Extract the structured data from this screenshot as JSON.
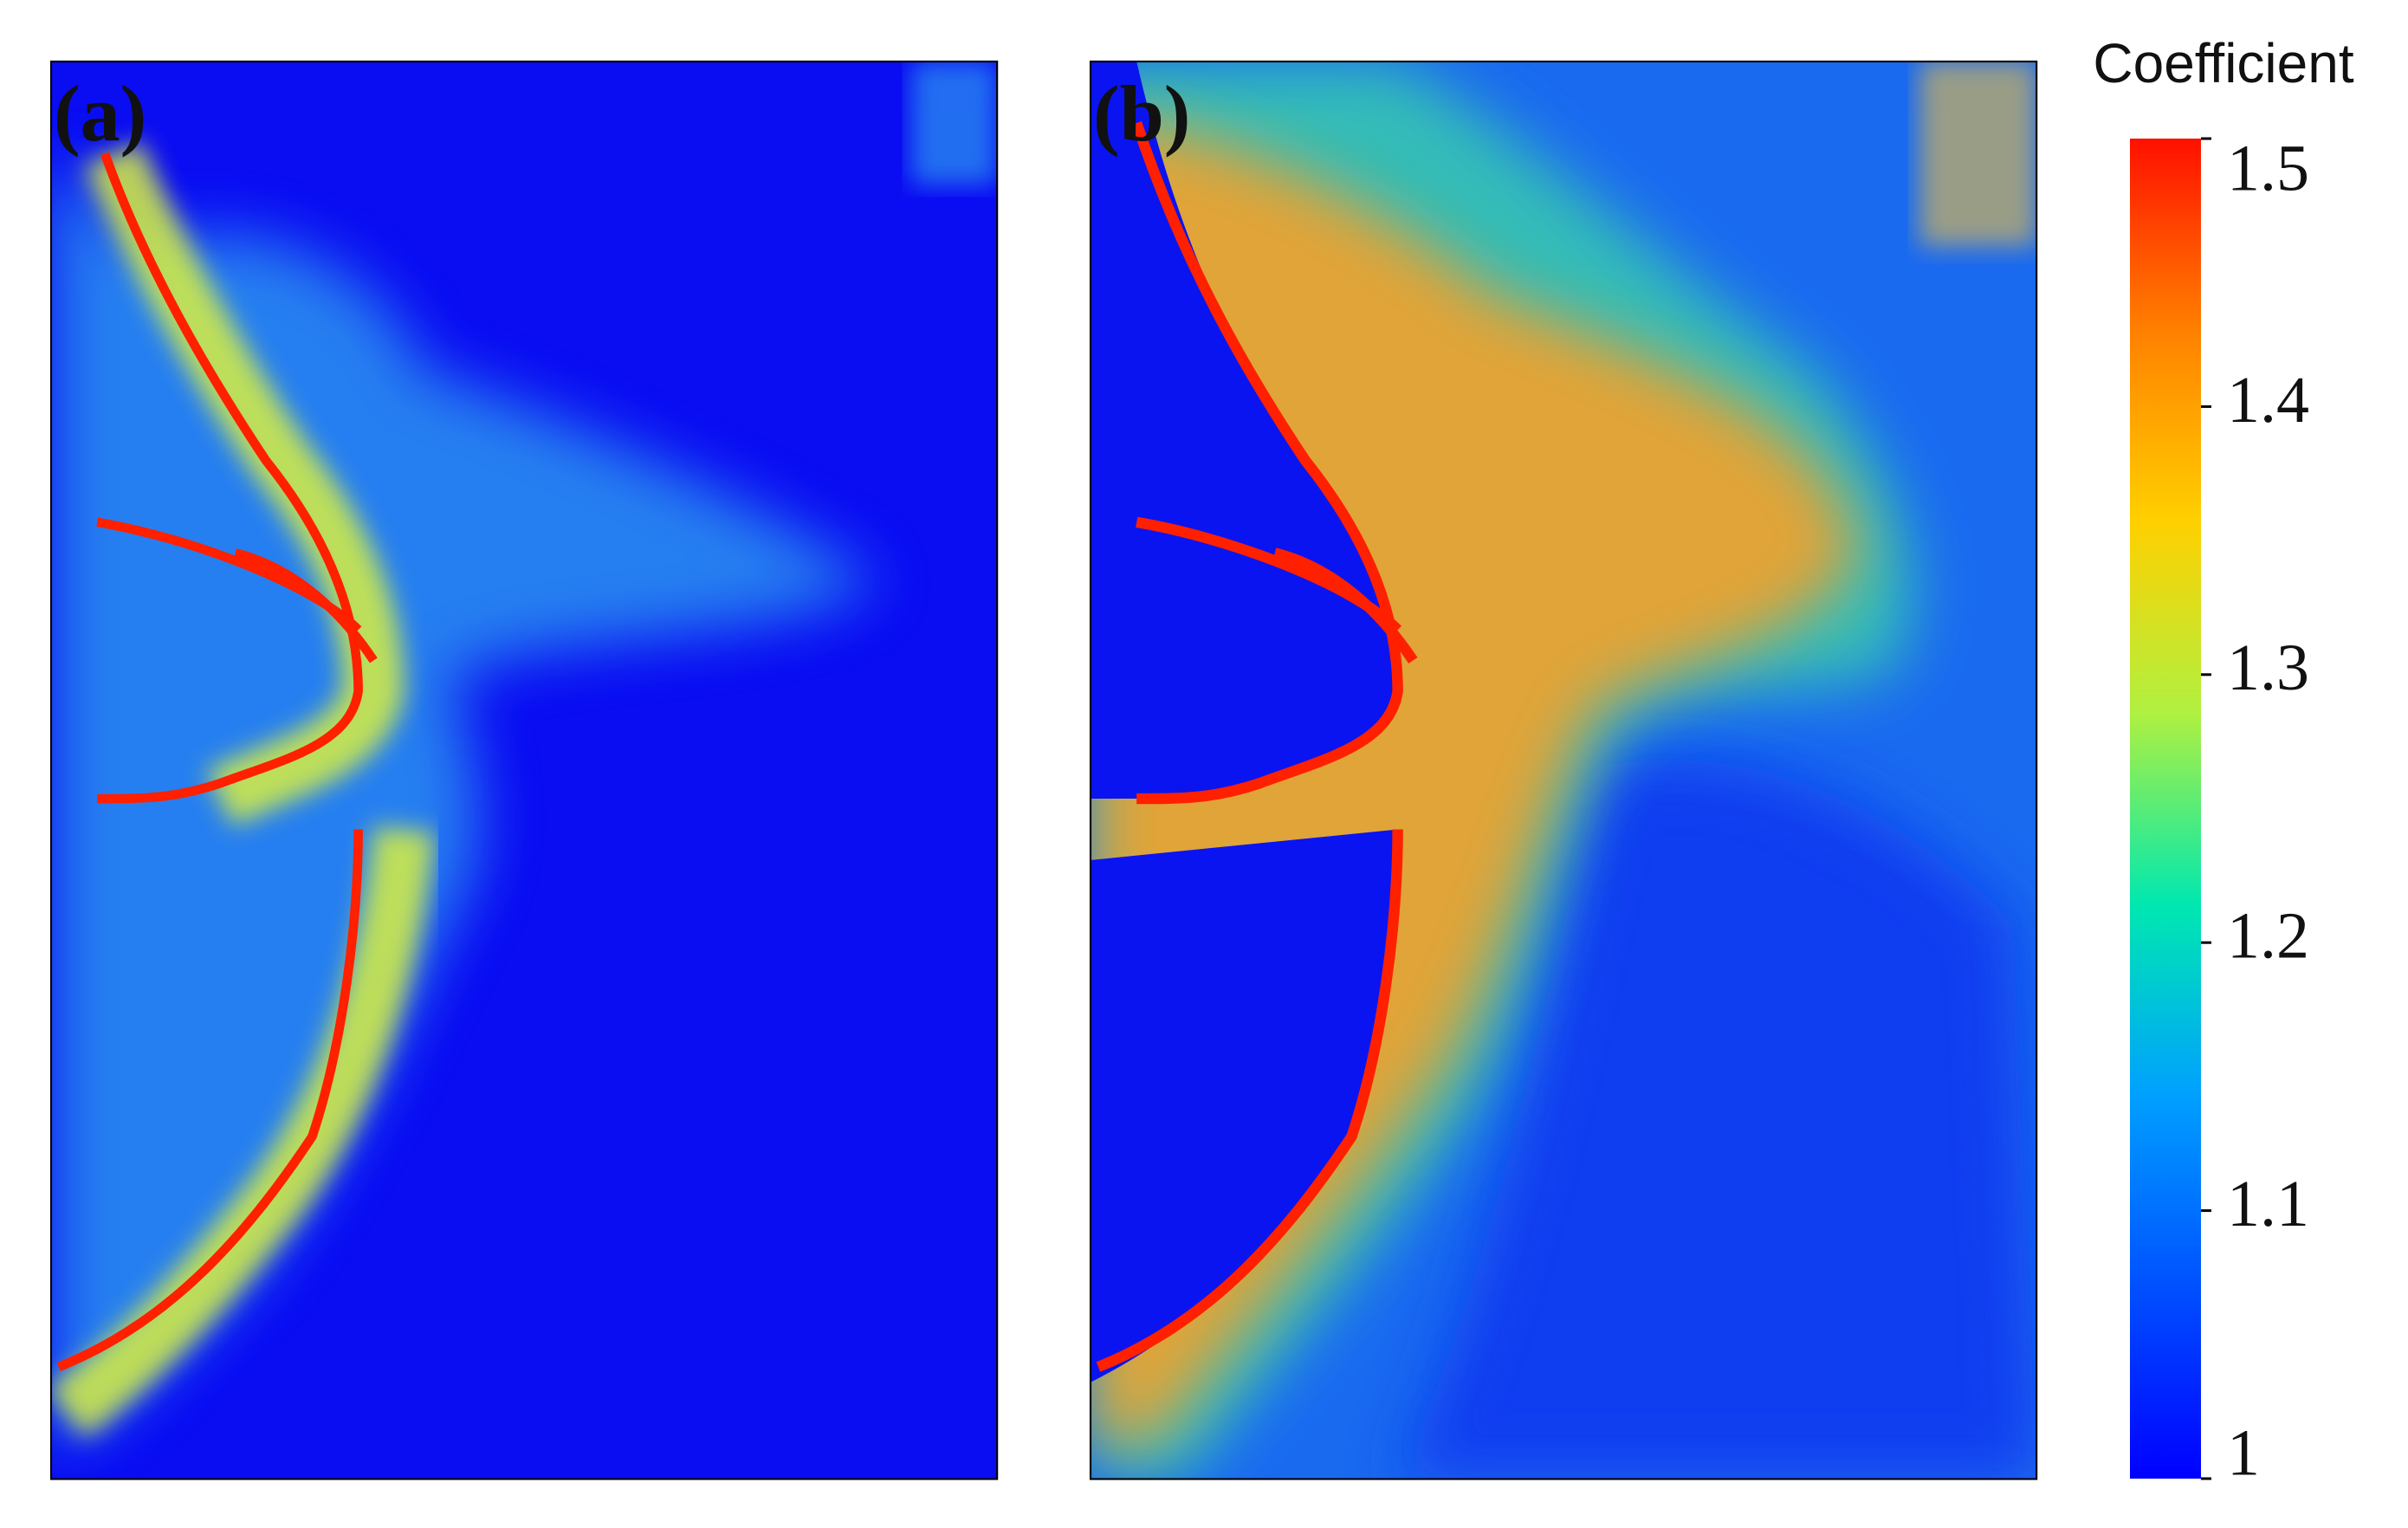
{
  "panels": [
    {
      "label": "(a)"
    },
    {
      "label": "(b)"
    }
  ],
  "colorbar": {
    "title": "Coefficient",
    "range": [
      1,
      1.5
    ],
    "ticks": [
      1,
      1.1,
      1.2,
      1.3,
      1.4,
      1.5
    ],
    "colors": [
      "#0000ff",
      "#0050ff",
      "#00a0ff",
      "#00e8b0",
      "#b0f040",
      "#ffd000",
      "#ff8000",
      "#ff1000"
    ]
  }
}
